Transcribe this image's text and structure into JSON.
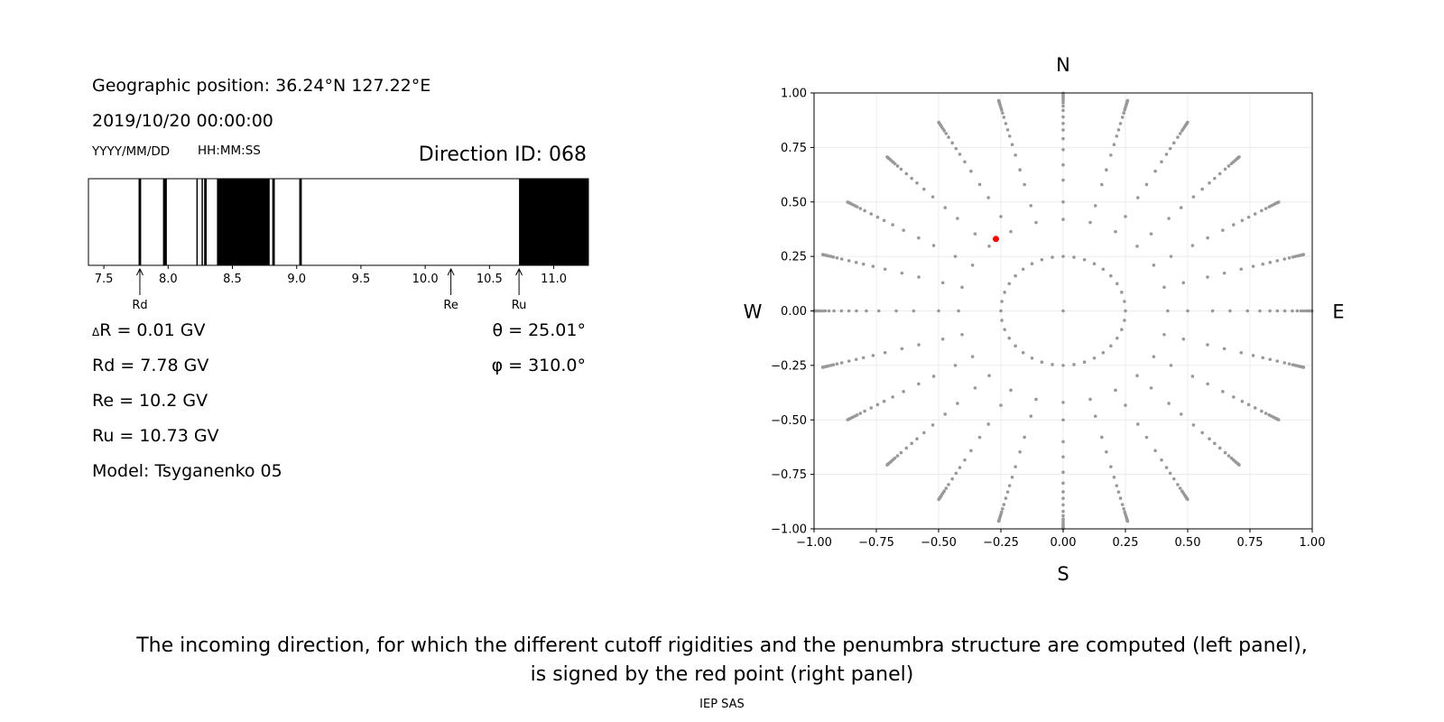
{
  "left_panel": {
    "geo_position": "Geographic position: 36.24°N 127.22°E",
    "datetime": "2019/10/20 00:00:00",
    "date_format": "YYYY/MM/DD",
    "time_format": "HH:MM:SS",
    "direction_id": "Direction ID: 068",
    "delta_r": "R = 0.01 GV",
    "delta_symbol": "Δ",
    "rd": "Rd = 7.78 GV",
    "re": "Re = 10.2 GV",
    "ru": "Ru = 10.73 GV",
    "model": "Model: Tsyganenko 05",
    "theta": "θ = 25.01°",
    "phi": "φ = 310.0°"
  },
  "caption": {
    "line1": "The incoming direction, for which the different cutoff rigidities and the penumbra structure are computed (left panel),",
    "line2": "is signed by the red point (right panel)"
  },
  "footer": "IEP SAS",
  "chart_data": [
    {
      "type": "bar",
      "name": "penumbra",
      "xlim": [
        7.38,
        11.27
      ],
      "xticks": [
        7.5,
        8.0,
        8.5,
        9.0,
        9.5,
        10.0,
        10.5,
        11.0
      ],
      "xtick_labels": [
        "7.5",
        "8.0",
        "8.5",
        "9.0",
        "9.5",
        "10.0",
        "10.5",
        "11.0"
      ],
      "forbidden_bands": [
        [
          7.77,
          7.79
        ],
        [
          7.96,
          7.99
        ],
        [
          8.22,
          8.23
        ],
        [
          8.26,
          8.27
        ],
        [
          8.28,
          8.3
        ],
        [
          8.38,
          8.79
        ],
        [
          8.81,
          8.83
        ],
        [
          9.02,
          9.04
        ],
        [
          10.73,
          11.27
        ]
      ],
      "markers": [
        {
          "label": "Rd",
          "value": 7.78
        },
        {
          "label": "Re",
          "value": 10.2
        },
        {
          "label": "Ru",
          "value": 10.73
        }
      ],
      "colors": {
        "forbidden": "#000000",
        "allowed": "#ffffff"
      }
    },
    {
      "type": "scatter",
      "name": "directions",
      "xlim": [
        -1.0,
        1.0
      ],
      "ylim": [
        -1.0,
        1.0
      ],
      "xticks": [
        "−1.00",
        "−0.75",
        "−0.50",
        "−0.25",
        "0.00",
        "0.25",
        "0.50",
        "0.75",
        "1.00"
      ],
      "yticks": [
        "−1.00",
        "−0.75",
        "−0.50",
        "−0.25",
        "0.00",
        "0.25",
        "0.50",
        "0.75",
        "1.00"
      ],
      "compass": {
        "north": "N",
        "south": "S",
        "west": "W",
        "east": "E"
      },
      "grid": true,
      "grid_points": {
        "rings_sin_zenith": [
          0.0,
          0.25,
          0.42,
          0.5,
          0.6,
          0.67,
          0.74,
          0.79,
          0.83,
          0.86,
          0.89,
          0.92,
          0.94,
          0.955,
          0.965,
          0.975,
          0.983,
          0.99,
          0.995,
          0.999
        ],
        "azimuth_step_deg": 15,
        "inner_ring_step_deg": 10
      },
      "selected_point": {
        "x": -0.27,
        "y": 0.33
      },
      "colors": {
        "points": "#999999",
        "selected": "#ff0000"
      }
    }
  ]
}
